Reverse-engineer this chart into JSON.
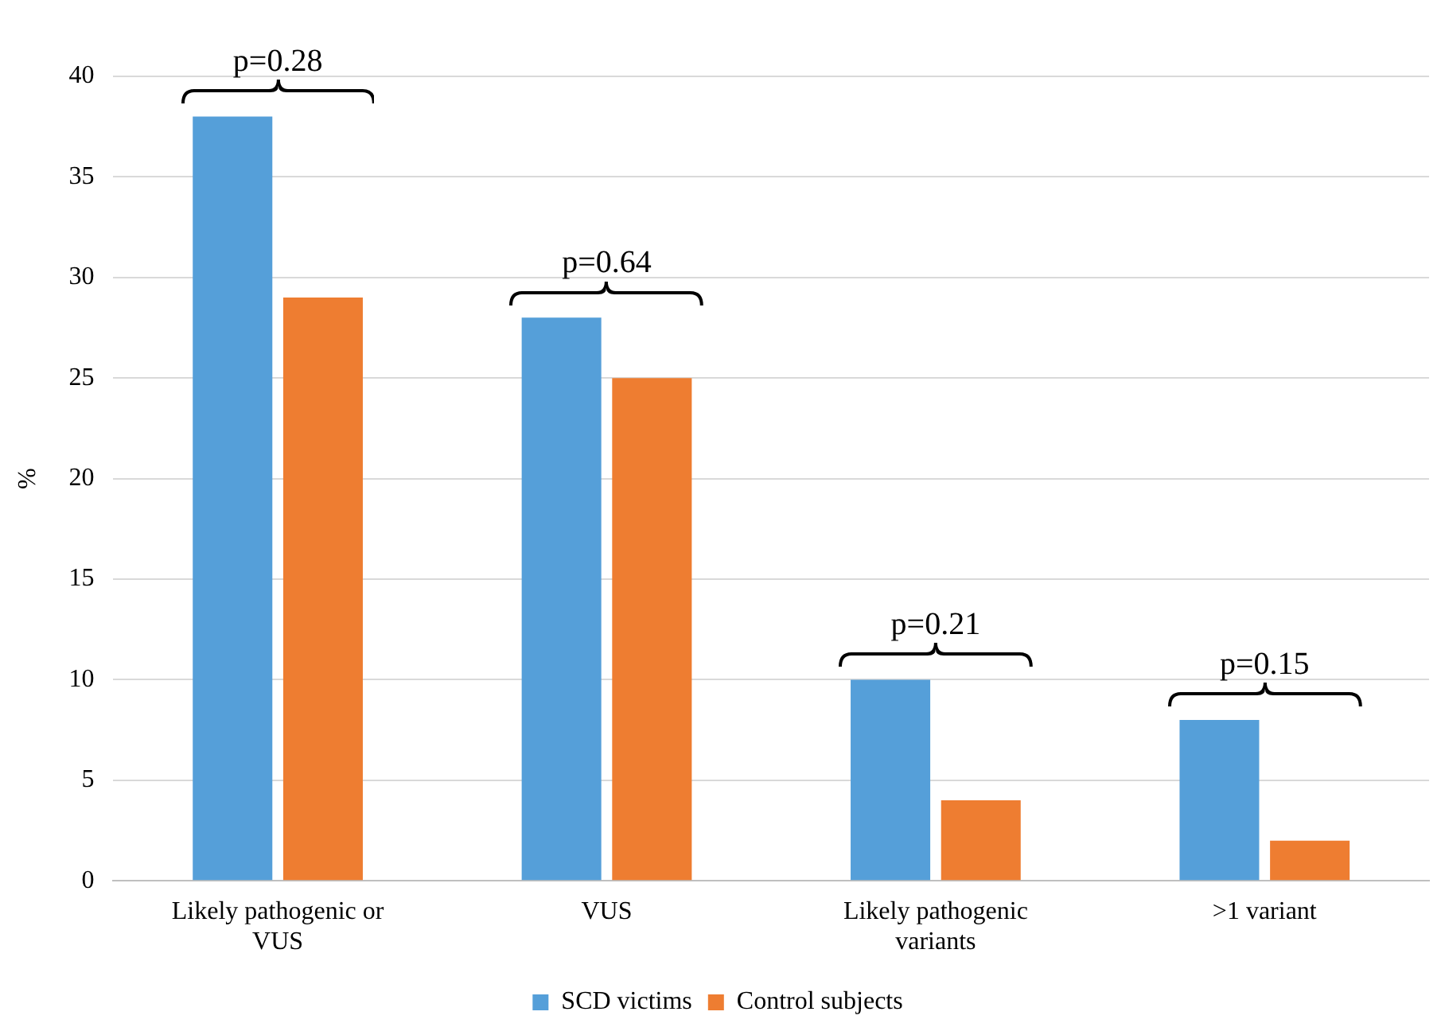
{
  "chart_data": {
    "type": "bar",
    "ylabel": "%",
    "categories": [
      "Likely pathogenic or VUS",
      "VUS",
      "Likely pathogenic variants",
      ">1 variant"
    ],
    "series": [
      {
        "name": "SCD victims",
        "color": "#559fd9",
        "values": [
          38,
          28,
          10,
          8
        ]
      },
      {
        "name": "Control subjects",
        "color": "#ee7d31",
        "values": [
          29,
          25,
          4,
          2
        ]
      }
    ],
    "ylim": [
      0,
      40
    ],
    "yticks": [
      0,
      5,
      10,
      15,
      20,
      25,
      30,
      35,
      40
    ],
    "grid": "y",
    "legend": "bottom",
    "annotations": [
      "p=0.28",
      "p=0.64",
      "p=0.21",
      "p=0.15"
    ]
  }
}
